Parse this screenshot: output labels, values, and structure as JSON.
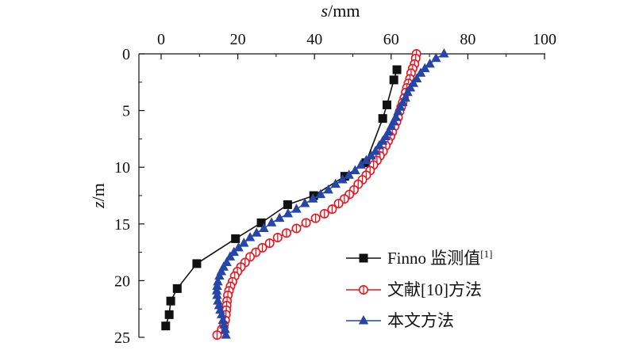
{
  "chart_data": {
    "type": "line",
    "xlabel": "s/mm",
    "ylabel": "z/m",
    "x_axis_position": "top",
    "y_axis_inverted": true,
    "xlim": [
      -6,
      100
    ],
    "ylim": [
      0,
      25
    ],
    "xticks": [
      "0",
      "20",
      "40",
      "60",
      "80",
      "100"
    ],
    "yticks": [
      "0",
      "5",
      "10",
      "15",
      "20",
      "25"
    ],
    "legend_position": "bottom-right",
    "series": [
      {
        "name": "Finno 监测值",
        "name_sup": "[1]",
        "color": "#111111",
        "marker": "filled-square",
        "points": [
          [
            61.5,
            1.4
          ],
          [
            60.7,
            2.3
          ],
          [
            58.9,
            4.5
          ],
          [
            57.8,
            5.7
          ],
          [
            53.4,
            9.6
          ],
          [
            47.9,
            10.8
          ],
          [
            39.8,
            12.5
          ],
          [
            33.0,
            13.3
          ],
          [
            26.1,
            14.9
          ],
          [
            19.4,
            16.3
          ],
          [
            9.3,
            18.5
          ],
          [
            4.2,
            20.7
          ],
          [
            2.5,
            21.8
          ],
          [
            2.1,
            23.0
          ],
          [
            1.2,
            24.0
          ]
        ]
      },
      {
        "name": "文献[10]方法",
        "color": "#e8141e",
        "marker": "circle-half",
        "points": [
          [
            66.6,
            0.0
          ],
          [
            66.4,
            0.4
          ],
          [
            66.1,
            0.9
          ],
          [
            65.6,
            1.3
          ],
          [
            65.2,
            1.7
          ],
          [
            64.9,
            2.2
          ],
          [
            64.5,
            2.6
          ],
          [
            64.1,
            3.0
          ],
          [
            63.8,
            3.4
          ],
          [
            63.4,
            3.9
          ],
          [
            63.0,
            4.3
          ],
          [
            62.6,
            4.7
          ],
          [
            62.2,
            5.1
          ],
          [
            61.8,
            5.6
          ],
          [
            61.4,
            6.0
          ],
          [
            60.9,
            6.4
          ],
          [
            60.3,
            6.9
          ],
          [
            59.8,
            7.3
          ],
          [
            59.2,
            7.7
          ],
          [
            58.6,
            8.1
          ],
          [
            57.9,
            8.6
          ],
          [
            57.1,
            9.0
          ],
          [
            56.3,
            9.4
          ],
          [
            55.4,
            9.8
          ],
          [
            54.5,
            10.3
          ],
          [
            53.5,
            10.7
          ],
          [
            52.5,
            11.1
          ],
          [
            51.4,
            11.5
          ],
          [
            50.3,
            12.0
          ],
          [
            49.1,
            12.4
          ],
          [
            47.8,
            12.8
          ],
          [
            46.3,
            13.2
          ],
          [
            44.6,
            13.7
          ],
          [
            42.6,
            14.1
          ],
          [
            40.3,
            14.5
          ],
          [
            37.8,
            14.9
          ],
          [
            35.3,
            15.4
          ],
          [
            32.7,
            15.8
          ],
          [
            30.4,
            16.2
          ],
          [
            28.3,
            16.7
          ],
          [
            26.4,
            17.1
          ],
          [
            24.7,
            17.5
          ],
          [
            23.2,
            17.9
          ],
          [
            21.9,
            18.4
          ],
          [
            20.8,
            18.8
          ],
          [
            19.9,
            19.2
          ],
          [
            19.2,
            19.6
          ],
          [
            18.6,
            20.1
          ],
          [
            18.1,
            20.5
          ],
          [
            17.7,
            20.9
          ],
          [
            17.4,
            21.3
          ],
          [
            17.2,
            21.8
          ],
          [
            17.1,
            22.2
          ],
          [
            17.0,
            22.6
          ],
          [
            16.9,
            23.0
          ],
          [
            16.7,
            23.5
          ],
          [
            16.4,
            23.9
          ],
          [
            15.8,
            24.3
          ],
          [
            14.6,
            24.8
          ]
        ]
      },
      {
        "name": "本文方法",
        "color": "#2545a8",
        "marker": "filled-triangle",
        "points": [
          [
            73.8,
            0.0
          ],
          [
            71.7,
            0.4
          ],
          [
            70.1,
            0.9
          ],
          [
            68.8,
            1.3
          ],
          [
            67.7,
            1.7
          ],
          [
            66.7,
            2.2
          ],
          [
            65.8,
            2.6
          ],
          [
            65.0,
            3.0
          ],
          [
            64.3,
            3.4
          ],
          [
            63.7,
            3.9
          ],
          [
            63.0,
            4.3
          ],
          [
            62.4,
            4.7
          ],
          [
            61.8,
            5.1
          ],
          [
            61.2,
            5.6
          ],
          [
            60.6,
            6.0
          ],
          [
            60.0,
            6.4
          ],
          [
            59.3,
            6.9
          ],
          [
            58.6,
            7.3
          ],
          [
            57.8,
            7.7
          ],
          [
            56.9,
            8.1
          ],
          [
            55.9,
            8.6
          ],
          [
            54.8,
            9.0
          ],
          [
            53.5,
            9.4
          ],
          [
            52.1,
            9.8
          ],
          [
            50.6,
            10.3
          ],
          [
            49.0,
            10.7
          ],
          [
            47.3,
            11.1
          ],
          [
            45.5,
            11.5
          ],
          [
            43.6,
            12.0
          ],
          [
            41.6,
            12.4
          ],
          [
            39.6,
            12.8
          ],
          [
            37.5,
            13.2
          ],
          [
            35.3,
            13.7
          ],
          [
            33.1,
            14.1
          ],
          [
            30.9,
            14.5
          ],
          [
            28.8,
            14.9
          ],
          [
            26.8,
            15.4
          ],
          [
            24.9,
            15.8
          ],
          [
            23.2,
            16.2
          ],
          [
            21.6,
            16.7
          ],
          [
            20.2,
            17.1
          ],
          [
            19.0,
            17.5
          ],
          [
            18.0,
            17.9
          ],
          [
            17.1,
            18.4
          ],
          [
            16.3,
            18.8
          ],
          [
            15.7,
            19.2
          ],
          [
            15.2,
            19.6
          ],
          [
            14.8,
            20.1
          ],
          [
            14.6,
            20.5
          ],
          [
            14.5,
            20.9
          ],
          [
            14.6,
            21.3
          ],
          [
            14.8,
            21.8
          ],
          [
            15.1,
            22.2
          ],
          [
            15.4,
            22.6
          ],
          [
            15.8,
            23.0
          ],
          [
            16.1,
            23.5
          ],
          [
            16.4,
            23.9
          ],
          [
            16.7,
            24.3
          ],
          [
            16.9,
            24.8
          ]
        ]
      }
    ]
  }
}
